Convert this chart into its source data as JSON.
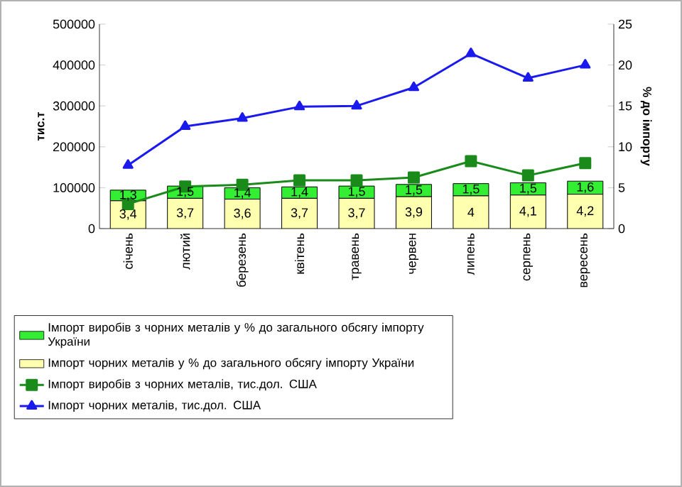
{
  "chart_data": {
    "type": "bar",
    "stacked": true,
    "ylabel": "тис.т",
    "y2label": "% до імпорту",
    "categories": [
      "січень",
      "лютий",
      "березень",
      "квітень",
      "травень",
      "червен",
      "липень",
      "серпень",
      "вересень"
    ],
    "ylim": [
      0,
      500000
    ],
    "yticks": [
      0,
      100000,
      200000,
      300000,
      400000,
      500000
    ],
    "y2lim": [
      0,
      25
    ],
    "y2ticks": [
      0,
      5,
      10,
      15,
      20,
      25
    ],
    "legend": "bottom",
    "grid": false,
    "series": [
      {
        "name": "Імпорт чорних металів у % до загального обсягу імпорту України",
        "axis": "y2",
        "color": "#ffffb0",
        "values": [
          3.4,
          3.7,
          3.6,
          3.7,
          3.7,
          3.9,
          4,
          4.1,
          4.2
        ],
        "value_labels": [
          "3,4",
          "3,7",
          "3,6",
          "3,7",
          "3,7",
          "3,9",
          "4",
          "4,1",
          "4,2"
        ]
      },
      {
        "name": "Імпорт виробів з чорних металів у % до загального обсягу імпорту України",
        "axis": "y2",
        "color": "#33ee33",
        "values": [
          1.3,
          1.5,
          1.4,
          1.4,
          1.5,
          1.5,
          1.5,
          1.5,
          1.6
        ],
        "value_labels": [
          "1,3",
          "1,5",
          "1,4",
          "1,4",
          "1,5",
          "1,5",
          "1,5",
          "1,5",
          "1,6"
        ]
      },
      {
        "name": "Імпорт виробів з чорних металів, тис.дол. США",
        "type": "line",
        "axis": "y",
        "color": "#1a8a1a",
        "marker": "square",
        "values": [
          60000,
          103000,
          107000,
          118000,
          118000,
          125000,
          165000,
          130000,
          160000
        ]
      },
      {
        "name": "Імпорт чорних металів, тис.дол. США",
        "type": "line",
        "axis": "y",
        "color": "#1a1aee",
        "marker": "triangle",
        "values": [
          155000,
          250000,
          270000,
          298000,
          300000,
          345000,
          428000,
          368000,
          400000
        ]
      }
    ]
  }
}
